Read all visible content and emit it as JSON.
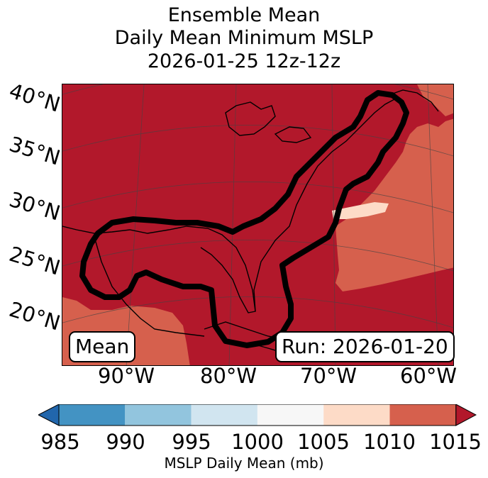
{
  "title": {
    "line1": "Ensemble Mean",
    "line2": "Daily Mean Minimum MSLP",
    "line3": "2026-01-25 12z-12z"
  },
  "map": {
    "lat_labels": [
      "40°N",
      "35°N",
      "30°N",
      "25°N",
      "20°N"
    ],
    "lon_labels": [
      "90°W",
      "80°W",
      "70°W",
      "60°W"
    ],
    "mean_box": "Mean",
    "run_box": "Run: 2026-01-20",
    "fill_colors": {
      "dominant": "#b2182b",
      "secondary": "#d6604d",
      "light": "#fddbc7"
    }
  },
  "colorbar": {
    "ticks": [
      "985",
      "990",
      "995",
      "1000",
      "1005",
      "1010",
      "1015"
    ],
    "bins": [
      {
        "from": 985,
        "to": 990,
        "color": "#4393c3"
      },
      {
        "from": 990,
        "to": 995,
        "color": "#92c5de"
      },
      {
        "from": 995,
        "to": 1000,
        "color": "#d1e5f0"
      },
      {
        "from": 1000,
        "to": 1005,
        "color": "#f7f7f7"
      },
      {
        "from": 1005,
        "to": 1010,
        "color": "#fddbc7"
      },
      {
        "from": 1010,
        "to": 1015,
        "color": "#d6604d"
      }
    ],
    "under_color": "#2166ac",
    "over_color": "#b2182b",
    "label": "MSLP Daily Mean (mb)"
  }
}
